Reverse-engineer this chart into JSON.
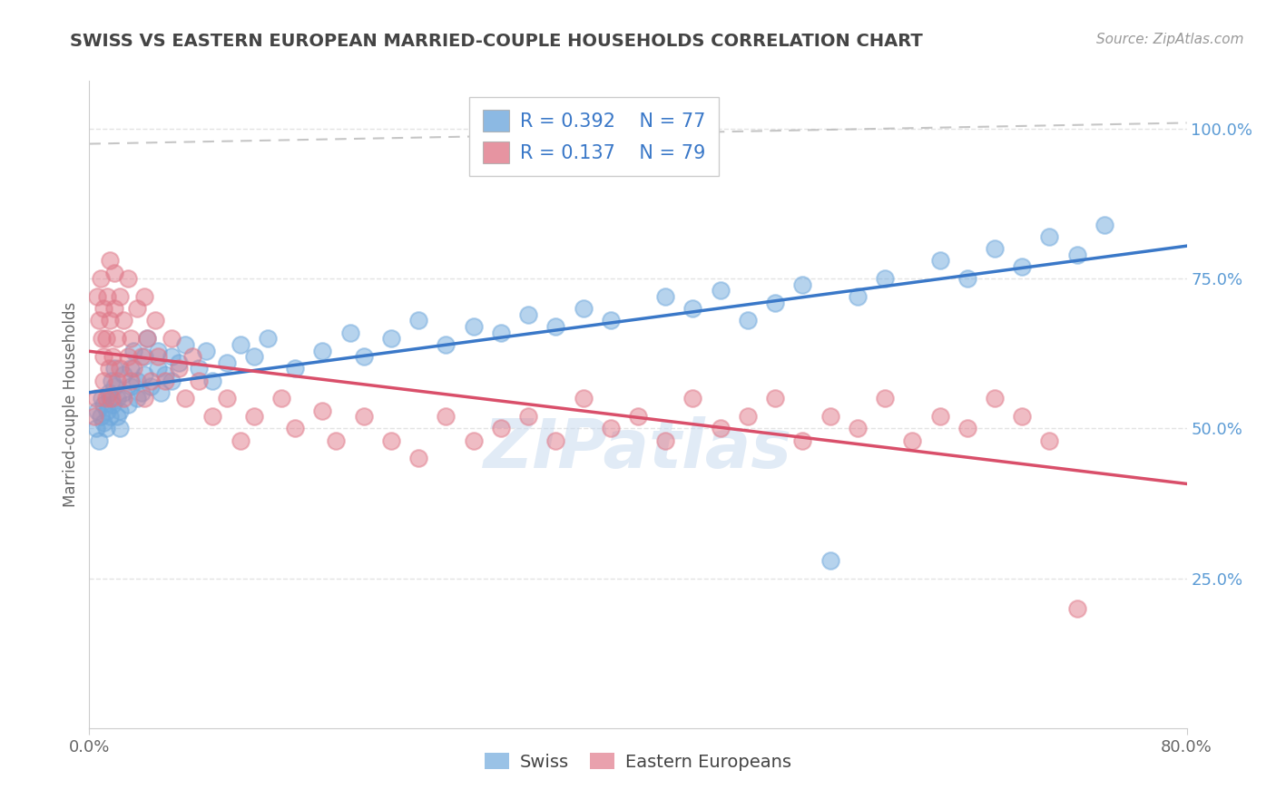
{
  "title": "SWISS VS EASTERN EUROPEAN MARRIED-COUPLE HOUSEHOLDS CORRELATION CHART",
  "source": "Source: ZipAtlas.com",
  "ylabel": "Married-couple Households",
  "x_min": 0.0,
  "x_max": 0.8,
  "y_min": 0.0,
  "y_max": 1.08,
  "blue_color": "#6fa8dc",
  "pink_color": "#e07a8a",
  "blue_line_color": "#3a78c8",
  "pink_line_color": "#d94f6a",
  "dashed_line_color": "#b8b8b8",
  "title_color": "#444444",
  "source_color": "#999999",
  "background_color": "#ffffff",
  "tick_color": "#666666",
  "right_tick_color": "#5b9bd5",
  "grid_color": "#e0e0e0",
  "swiss_x": [
    0.005,
    0.006,
    0.007,
    0.008,
    0.009,
    0.01,
    0.01,
    0.012,
    0.013,
    0.014,
    0.015,
    0.015,
    0.016,
    0.017,
    0.018,
    0.018,
    0.02,
    0.02,
    0.022,
    0.022,
    0.025,
    0.025,
    0.028,
    0.03,
    0.03,
    0.032,
    0.035,
    0.035,
    0.038,
    0.04,
    0.04,
    0.042,
    0.045,
    0.05,
    0.05,
    0.052,
    0.055,
    0.06,
    0.06,
    0.065,
    0.07,
    0.08,
    0.085,
    0.09,
    0.1,
    0.11,
    0.12,
    0.13,
    0.15,
    0.17,
    0.19,
    0.2,
    0.22,
    0.24,
    0.26,
    0.28,
    0.3,
    0.32,
    0.34,
    0.36,
    0.38,
    0.42,
    0.44,
    0.46,
    0.48,
    0.5,
    0.52,
    0.54,
    0.56,
    0.58,
    0.62,
    0.64,
    0.66,
    0.68,
    0.7,
    0.72,
    0.74
  ],
  "swiss_y": [
    0.5,
    0.53,
    0.48,
    0.52,
    0.55,
    0.51,
    0.54,
    0.5,
    0.53,
    0.56,
    0.52,
    0.55,
    0.58,
    0.54,
    0.57,
    0.6,
    0.52,
    0.55,
    0.5,
    0.53,
    0.56,
    0.59,
    0.54,
    0.57,
    0.6,
    0.63,
    0.55,
    0.58,
    0.56,
    0.59,
    0.62,
    0.65,
    0.57,
    0.6,
    0.63,
    0.56,
    0.59,
    0.62,
    0.58,
    0.61,
    0.64,
    0.6,
    0.63,
    0.58,
    0.61,
    0.64,
    0.62,
    0.65,
    0.6,
    0.63,
    0.66,
    0.62,
    0.65,
    0.68,
    0.64,
    0.67,
    0.66,
    0.69,
    0.67,
    0.7,
    0.68,
    0.72,
    0.7,
    0.73,
    0.68,
    0.71,
    0.74,
    0.28,
    0.72,
    0.75,
    0.78,
    0.75,
    0.8,
    0.77,
    0.82,
    0.79,
    0.84
  ],
  "eastern_x": [
    0.004,
    0.005,
    0.006,
    0.007,
    0.008,
    0.009,
    0.01,
    0.01,
    0.01,
    0.012,
    0.012,
    0.013,
    0.014,
    0.015,
    0.015,
    0.016,
    0.017,
    0.018,
    0.018,
    0.02,
    0.02,
    0.022,
    0.022,
    0.025,
    0.025,
    0.028,
    0.028,
    0.03,
    0.03,
    0.032,
    0.035,
    0.038,
    0.04,
    0.04,
    0.042,
    0.045,
    0.048,
    0.05,
    0.055,
    0.06,
    0.065,
    0.07,
    0.075,
    0.08,
    0.09,
    0.1,
    0.11,
    0.12,
    0.14,
    0.15,
    0.17,
    0.18,
    0.2,
    0.22,
    0.24,
    0.26,
    0.28,
    0.3,
    0.32,
    0.34,
    0.36,
    0.38,
    0.4,
    0.42,
    0.44,
    0.46,
    0.48,
    0.5,
    0.52,
    0.54,
    0.56,
    0.58,
    0.6,
    0.62,
    0.64,
    0.66,
    0.68,
    0.7,
    0.72
  ],
  "eastern_y": [
    0.52,
    0.55,
    0.72,
    0.68,
    0.75,
    0.65,
    0.58,
    0.62,
    0.7,
    0.55,
    0.65,
    0.72,
    0.6,
    0.68,
    0.78,
    0.55,
    0.62,
    0.7,
    0.76,
    0.58,
    0.65,
    0.6,
    0.72,
    0.55,
    0.68,
    0.62,
    0.75,
    0.58,
    0.65,
    0.6,
    0.7,
    0.62,
    0.55,
    0.72,
    0.65,
    0.58,
    0.68,
    0.62,
    0.58,
    0.65,
    0.6,
    0.55,
    0.62,
    0.58,
    0.52,
    0.55,
    0.48,
    0.52,
    0.55,
    0.5,
    0.53,
    0.48,
    0.52,
    0.48,
    0.45,
    0.52,
    0.48,
    0.5,
    0.52,
    0.48,
    0.55,
    0.5,
    0.52,
    0.48,
    0.55,
    0.5,
    0.52,
    0.55,
    0.48,
    0.52,
    0.5,
    0.55,
    0.48,
    0.52,
    0.5,
    0.55,
    0.52,
    0.48,
    0.2
  ]
}
